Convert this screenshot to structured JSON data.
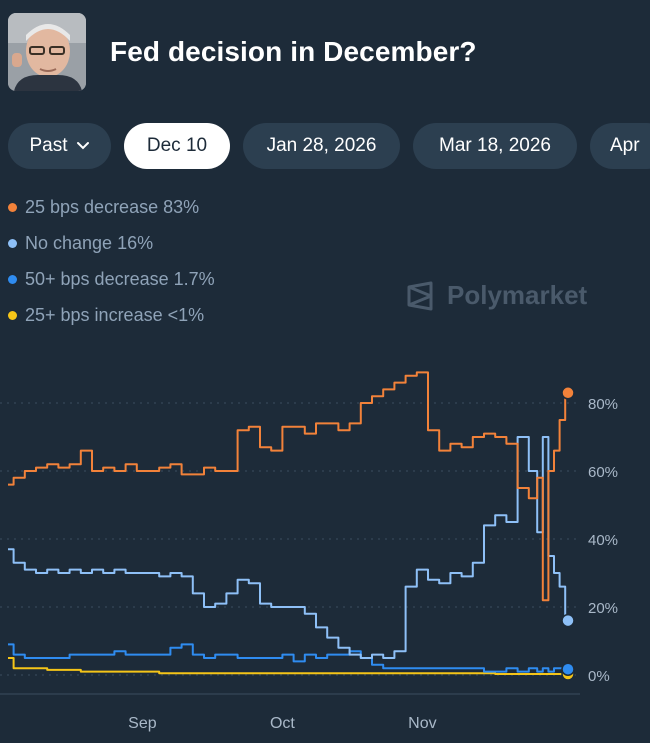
{
  "header": {
    "title": "Fed decision in December?"
  },
  "tabs": [
    {
      "label": "Past",
      "has_chevron": true,
      "active": false
    },
    {
      "label": "Dec 10",
      "active": true
    },
    {
      "label": "Jan 28, 2026",
      "active": false
    },
    {
      "label": "Mar 18, 2026",
      "active": false
    },
    {
      "label": "Apr",
      "active": false
    }
  ],
  "legend": [
    {
      "label": "25 bps decrease 83%",
      "color": "#f2823a"
    },
    {
      "label": "No change 16%",
      "color": "#8ec0f7"
    },
    {
      "label": "50+ bps decrease 1.7%",
      "color": "#2f8cf0"
    },
    {
      "label": "25+ bps increase <1%",
      "color": "#f5c518"
    }
  ],
  "watermark": {
    "text": "Polymarket"
  },
  "chart_data": {
    "type": "line",
    "title": "Fed decision in December?",
    "xlabel": "",
    "ylabel": "",
    "x_tick_labels": [
      "Sep",
      "Oct",
      "Nov"
    ],
    "y_tick_labels": [
      "80%",
      "60%",
      "40%",
      "20%",
      "0%"
    ],
    "y_ticks": [
      80,
      60,
      40,
      20,
      0
    ],
    "ylim": [
      -5,
      90
    ],
    "x": [
      0,
      2,
      4,
      6,
      8,
      10,
      12,
      14,
      16,
      18,
      20,
      22,
      24,
      26,
      28,
      30,
      32,
      34,
      36,
      38,
      40,
      42,
      44,
      46,
      48,
      50,
      52,
      54,
      56,
      58,
      60,
      62,
      64,
      66,
      68,
      70,
      72,
      74,
      76,
      78,
      80,
      82,
      84,
      86,
      88,
      90,
      92,
      94,
      95,
      96,
      97,
      98,
      99,
      100
    ],
    "x_ticks": {
      "Sep": 24,
      "Oct": 49,
      "Nov": 74
    },
    "series": [
      {
        "name": "25 bps decrease",
        "color": "#f2823a",
        "values": [
          56,
          58,
          60,
          61,
          62,
          61,
          62,
          66,
          60,
          61,
          60,
          62,
          60,
          60,
          61,
          62,
          59,
          59,
          61,
          60,
          60,
          72,
          73,
          67,
          66,
          73,
          73,
          71,
          74,
          74,
          72,
          74,
          80,
          82,
          84,
          86,
          88,
          89,
          72,
          66,
          68,
          67,
          70,
          71,
          70,
          68,
          55,
          52,
          58,
          22,
          60,
          66,
          75,
          83
        ]
      },
      {
        "name": "No change",
        "color": "#8ec0f7",
        "values": [
          37,
          33,
          31,
          30,
          31,
          30,
          31,
          30,
          31,
          30,
          31,
          30,
          30,
          30,
          29,
          30,
          29,
          24,
          20,
          21,
          24,
          28,
          27,
          21,
          20,
          20,
          20,
          18,
          14,
          11,
          8,
          6,
          5,
          6,
          5,
          7,
          26,
          31,
          28,
          27,
          30,
          29,
          33,
          44,
          47,
          45,
          70,
          60,
          42,
          70,
          35,
          30,
          26,
          16
        ]
      },
      {
        "name": "50+ bps decrease",
        "color": "#2f8cf0",
        "values": [
          9,
          6,
          5,
          5,
          5,
          5,
          6,
          6,
          6,
          6,
          7,
          6,
          6,
          6,
          6,
          8,
          9,
          6,
          5,
          6,
          6,
          5,
          5,
          5,
          5,
          6,
          4,
          6,
          5,
          6,
          6,
          7,
          5,
          3,
          2,
          2,
          2,
          2,
          2,
          2,
          2,
          2,
          2,
          1,
          1,
          2,
          1,
          2,
          1,
          2,
          1,
          2,
          2,
          1.7
        ]
      },
      {
        "name": "25+ bps increase",
        "color": "#f5c518",
        "values": [
          5,
          2,
          2,
          2,
          1.5,
          1.5,
          1.5,
          1,
          1,
          1,
          1,
          1,
          1,
          1,
          0.5,
          0.5,
          0.5,
          0.5,
          0.5,
          0.5,
          0.5,
          0.5,
          0.5,
          0.5,
          0.5,
          0.5,
          0.5,
          0.5,
          0.5,
          0.5,
          0.5,
          0.5,
          0.5,
          0.5,
          0.5,
          0.5,
          0.5,
          0.5,
          0.5,
          0.5,
          0.5,
          0.5,
          0.5,
          0.5,
          0.3,
          0.3,
          0.3,
          0.3,
          0.3,
          0.3,
          0.3,
          0.3,
          0.3,
          0.3
        ]
      }
    ],
    "grid": true,
    "legend_position": "top-left"
  }
}
